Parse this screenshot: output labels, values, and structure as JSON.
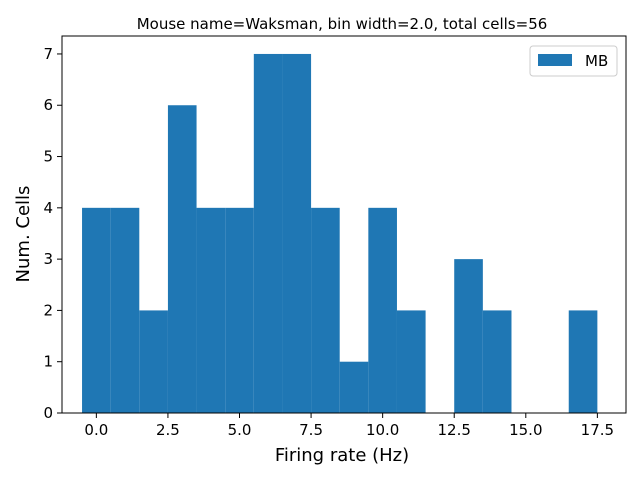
{
  "chart_data": {
    "type": "bar",
    "title": "Mouse name=Waksman, bin width=2.0, total cells=56",
    "xlabel": "Firing rate (Hz)",
    "ylabel": "Num. Cells",
    "xlim": [
      -1.2,
      18.5
    ],
    "ylim": [
      0,
      7.35
    ],
    "bar_width": 1.0,
    "x_ticks": [
      0.0,
      2.5,
      5.0,
      7.5,
      10.0,
      12.5,
      15.0,
      17.5
    ],
    "x_tick_labels": [
      "0.0",
      "2.5",
      "5.0",
      "7.5",
      "10.0",
      "12.5",
      "15.0",
      "17.5"
    ],
    "y_ticks": [
      0,
      1,
      2,
      3,
      4,
      5,
      6,
      7
    ],
    "y_tick_labels": [
      "0",
      "1",
      "2",
      "3",
      "4",
      "5",
      "6",
      "7"
    ],
    "grid": false,
    "legend_position": "top-right",
    "series": [
      {
        "name": "MB",
        "color": "#1f77b4",
        "x": [
          0,
          1,
          2,
          3,
          4,
          5,
          6,
          7,
          8,
          9,
          10,
          11,
          12,
          13,
          14,
          15,
          16,
          17
        ],
        "values": [
          4,
          4,
          2,
          6,
          4,
          4,
          7,
          7,
          4,
          1,
          4,
          2,
          0,
          3,
          2,
          0,
          0,
          2
        ]
      }
    ]
  }
}
